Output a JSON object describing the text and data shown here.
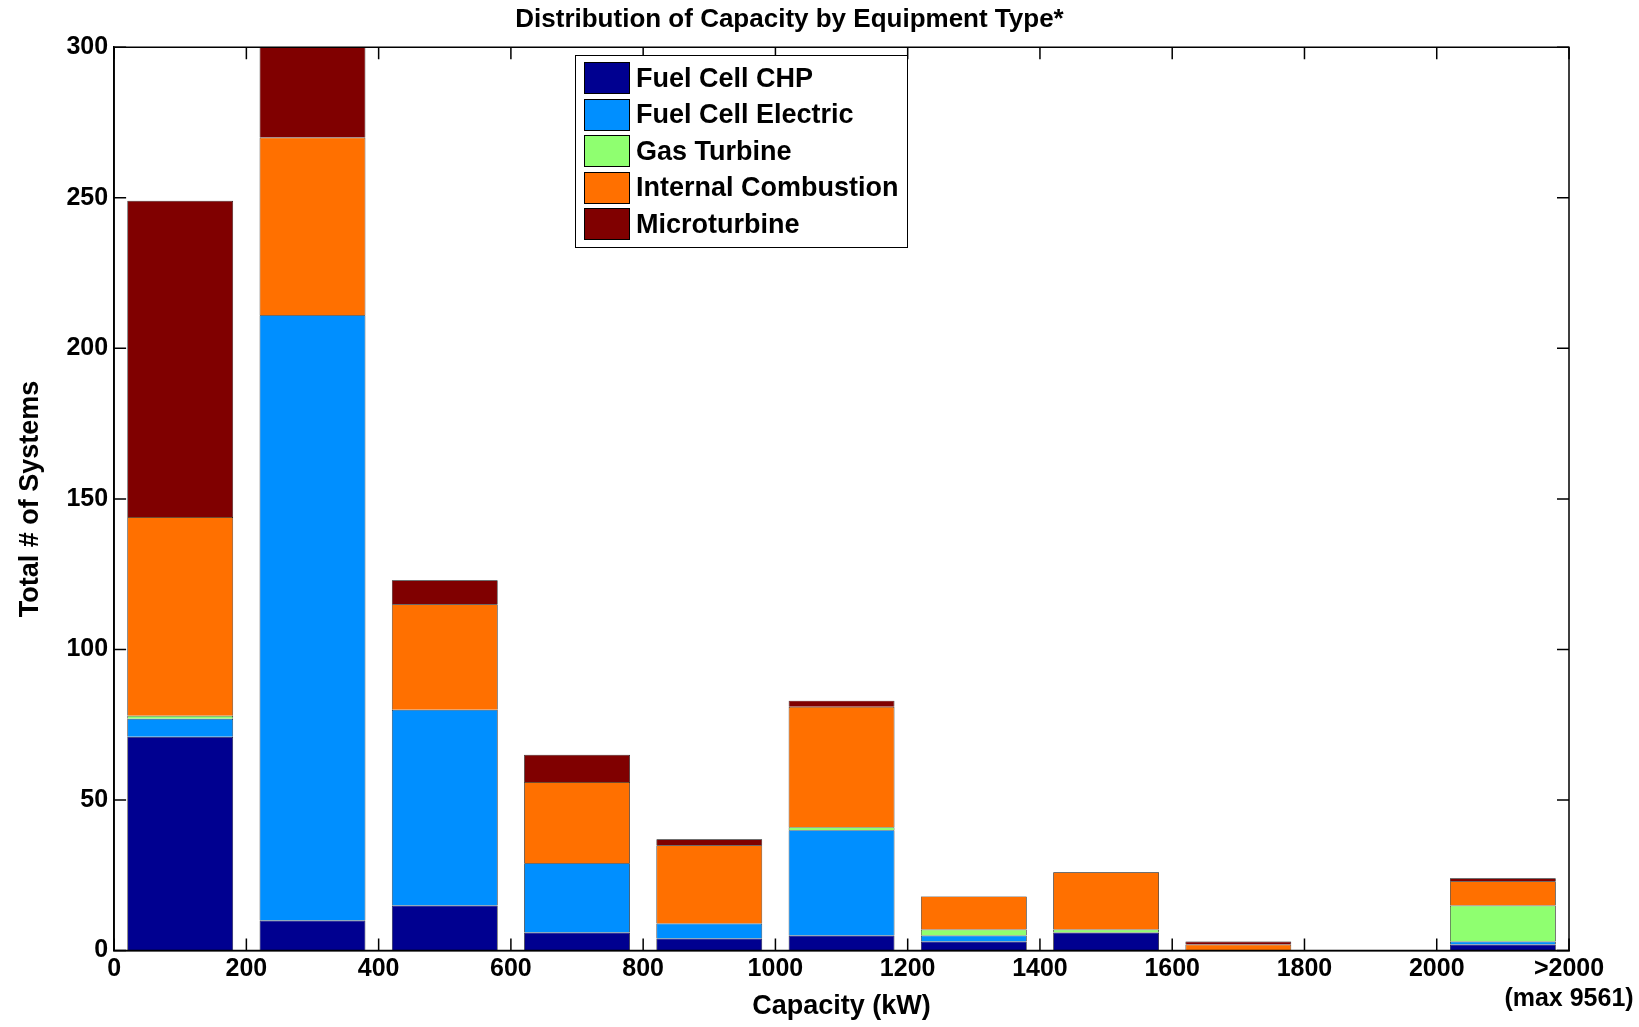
{
  "chart_data": {
    "type": "bar",
    "title": "Distribution of Capacity by Equipment Type*",
    "xlabel": "Capacity (kW)",
    "ylabel": "Total # of Systems",
    "stacked": true,
    "grid": false,
    "legend": "top",
    "x": [
      100,
      300,
      500,
      700,
      900,
      1100,
      1300,
      1500,
      1700,
      1900,
      2100
    ],
    "xlim": [
      0,
      2200
    ],
    "xticks": [
      0,
      200,
      400,
      600,
      800,
      1000,
      1200,
      1400,
      1600,
      1800,
      2000,
      {
        "value": 2200,
        "label": ">2000\n(max 9561)"
      }
    ],
    "ylim": [
      0,
      300
    ],
    "yticks": [
      0,
      50,
      100,
      150,
      200,
      250,
      300
    ],
    "series": [
      {
        "name": "Fuel Cell CHP",
        "color": "#000090",
        "values": [
          71,
          10,
          15,
          6,
          4,
          5,
          3,
          6,
          0,
          0,
          2
        ]
      },
      {
        "name": "Fuel Cell Electric",
        "color": "#008fff",
        "values": [
          6,
          201,
          65,
          23,
          5,
          35,
          2,
          0,
          0,
          0,
          1
        ]
      },
      {
        "name": "Gas Turbine",
        "color": "#8fff70",
        "values": [
          1,
          0,
          0,
          0,
          0,
          1,
          2,
          1,
          0,
          0,
          12
        ]
      },
      {
        "name": "Internal Combustion",
        "color": "#ff7000",
        "values": [
          66,
          59,
          35,
          27,
          26,
          40,
          11,
          19,
          2,
          0,
          8
        ]
      },
      {
        "name": "Microturbine",
        "color": "#800000",
        "values": [
          105,
          30,
          8,
          9,
          2,
          2,
          0,
          0,
          1,
          0,
          1
        ]
      }
    ]
  }
}
